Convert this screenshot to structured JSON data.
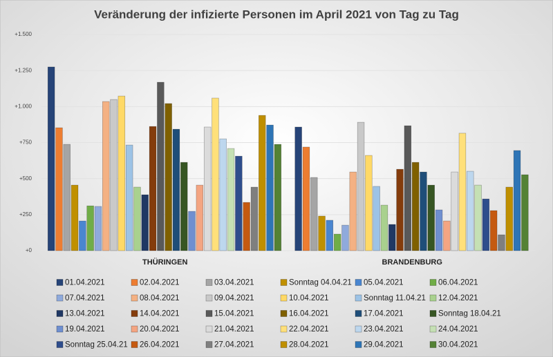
{
  "chart_data": {
    "type": "bar",
    "title": "Veränderung der infizierte Personen im April 2021 von Tag zu Tag",
    "categories": [
      "THÜRINGEN",
      "BRANDENBURG"
    ],
    "ylim": [
      0,
      1500
    ],
    "yticks": [
      {
        "value": 0,
        "label": "+0"
      },
      {
        "value": 250,
        "label": "+250"
      },
      {
        "value": 500,
        "label": "+500"
      },
      {
        "value": 750,
        "label": "+750"
      },
      {
        "value": 1000,
        "label": "+1.000"
      },
      {
        "value": 1250,
        "label": "+1.250"
      },
      {
        "value": 1500,
        "label": "+1.500"
      }
    ],
    "grid": true,
    "series": [
      {
        "name": "01.04.2021",
        "color": "#264478",
        "values": [
          1275,
          858
        ]
      },
      {
        "name": "02.04.2021",
        "color": "#ed7d31",
        "values": [
          853,
          719
        ]
      },
      {
        "name": "03.04.2021",
        "color": "#a5a5a5",
        "values": [
          738,
          508
        ]
      },
      {
        "name": "Sonntag 04.04.21",
        "color": "#c09000",
        "values": [
          455,
          240
        ]
      },
      {
        "name": "05.04.2021",
        "color": "#4a86d0",
        "values": [
          206,
          211
        ]
      },
      {
        "name": "06.04.2021",
        "color": "#70ad47",
        "values": [
          311,
          115
        ]
      },
      {
        "name": "07.04.2021",
        "color": "#8faadc",
        "values": [
          307,
          177
        ]
      },
      {
        "name": "08.04.2021",
        "color": "#f4b183",
        "values": [
          1035,
          546
        ]
      },
      {
        "name": "09.04.2021",
        "color": "#c9c9c9",
        "values": [
          1049,
          891
        ]
      },
      {
        "name": "10.04.2021",
        "color": "#ffd966",
        "values": [
          1073,
          661
        ]
      },
      {
        "name": "Sonntag 11.04.21",
        "color": "#9dc3e6",
        "values": [
          733,
          446
        ]
      },
      {
        "name": "12.04.2021",
        "color": "#a9d18e",
        "values": [
          441,
          316
        ]
      },
      {
        "name": "13.04.2021",
        "color": "#203864",
        "values": [
          388,
          182
        ]
      },
      {
        "name": "14.04.2021",
        "color": "#843c0c",
        "values": [
          862,
          565
        ]
      },
      {
        "name": "15.04.2021",
        "color": "#595959",
        "values": [
          1169,
          867
        ]
      },
      {
        "name": "16.04.2021",
        "color": "#7f6000",
        "values": [
          1021,
          613
        ]
      },
      {
        "name": "17.04.2021",
        "color": "#1f4e79",
        "values": [
          843,
          546
        ]
      },
      {
        "name": "Sonntag 18.04.21",
        "color": "#375623",
        "values": [
          613,
          455
        ]
      },
      {
        "name": "19.04.2021",
        "color": "#6f8fd0",
        "values": [
          273,
          283
        ]
      },
      {
        "name": "20.04.2021",
        "color": "#f4a582",
        "values": [
          455,
          206
        ]
      },
      {
        "name": "21.04.2021",
        "color": "#dbdbdb",
        "values": [
          858,
          546
        ]
      },
      {
        "name": "22.04.2021",
        "color": "#ffe07a",
        "values": [
          1059,
          815
        ]
      },
      {
        "name": "23.04.2021",
        "color": "#bdd7ee",
        "values": [
          776,
          551
        ]
      },
      {
        "name": "24.04.2021",
        "color": "#c5e0b4",
        "values": [
          709,
          455
        ]
      },
      {
        "name": "Sonntag 25.04.21",
        "color": "#2e4d8c",
        "values": [
          656,
          359
        ]
      },
      {
        "name": "26.04.2021",
        "color": "#c55a11",
        "values": [
          335,
          278
        ]
      },
      {
        "name": "27.04.2021",
        "color": "#7f7f7f",
        "values": [
          441,
          110
        ]
      },
      {
        "name": "28.04.2021",
        "color": "#bf8f00",
        "values": [
          939,
          441
        ]
      },
      {
        "name": "29.04.2021",
        "color": "#2e75b6",
        "values": [
          872,
          695
        ]
      },
      {
        "name": "30.04.2021",
        "color": "#548235",
        "values": [
          738,
          527
        ]
      }
    ]
  }
}
